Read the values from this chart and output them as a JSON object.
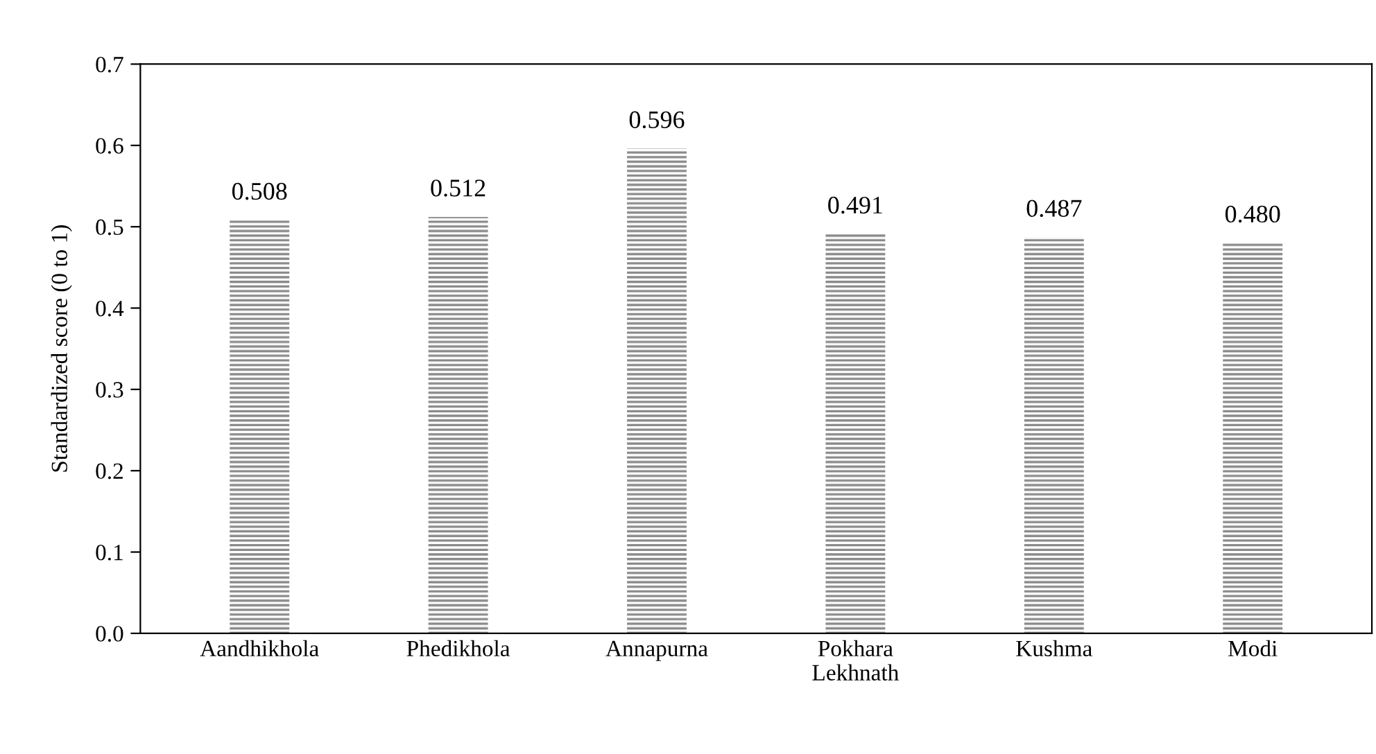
{
  "chart_data": {
    "type": "bar",
    "ylabel": "Standardized score (0 to 1)",
    "categories": [
      "Aandhikhola",
      "Phedikhola",
      "Annapurna",
      "Pokhara\nLekhnath",
      "Kushma",
      "Modi"
    ],
    "values": [
      0.508,
      0.512,
      0.596,
      0.491,
      0.487,
      0.48
    ],
    "value_labels": [
      "0.508",
      "0.512",
      "0.596",
      "0.491",
      "0.487",
      "0.480"
    ],
    "color": "#8a8a8a",
    "ylim": [
      0,
      0.7
    ],
    "yticks": [
      {
        "value": 0,
        "label": "0.0"
      },
      {
        "value": 0.1,
        "label": "0.1"
      },
      {
        "value": 0.2,
        "label": "0.2"
      },
      {
        "value": 0.3,
        "label": "0.3"
      },
      {
        "value": 0.4,
        "label": "0.4"
      },
      {
        "value": 0.5,
        "label": "0.5"
      },
      {
        "value": 0.6,
        "label": "0.6"
      },
      {
        "value": 0.7,
        "label": "0.7"
      }
    ],
    "grid": false,
    "legend": false
  }
}
